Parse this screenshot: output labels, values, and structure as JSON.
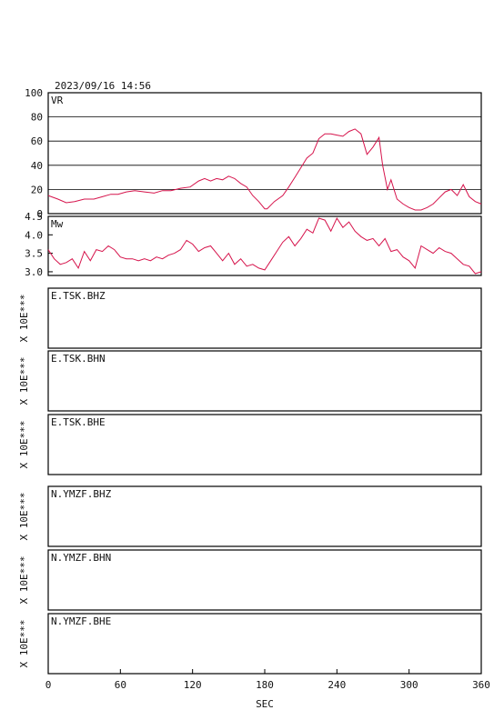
{
  "header": {
    "timestamp": "2023/09/16  14:56"
  },
  "colors": {
    "line": "#d6144c",
    "axis": "#000000",
    "grid": "#000000"
  },
  "chart_data": [
    {
      "type": "line",
      "ylabel": "VR",
      "ylim": [
        0,
        100
      ],
      "yticks": [
        "0",
        "20",
        "40",
        "60",
        "80",
        "100"
      ],
      "grid": true,
      "x": [
        0,
        8,
        15,
        22,
        30,
        38,
        45,
        52,
        58,
        65,
        72,
        80,
        88,
        95,
        102,
        110,
        118,
        125,
        130,
        135,
        140,
        145,
        150,
        155,
        160,
        165,
        170,
        175,
        180,
        182,
        188,
        195,
        200,
        205,
        210,
        215,
        220,
        225,
        230,
        235,
        240,
        245,
        250,
        255,
        260,
        265,
        270,
        275,
        278,
        282,
        285,
        290,
        295,
        300,
        305,
        310,
        315,
        320,
        325,
        330,
        335,
        340,
        345,
        350,
        355,
        360
      ],
      "y": [
        15,
        12,
        9,
        10,
        12,
        12,
        14,
        16,
        16,
        18,
        19,
        18,
        17,
        19,
        19,
        21,
        22,
        27,
        29,
        27,
        29,
        28,
        31,
        29,
        25,
        22,
        15,
        10,
        4,
        4,
        10,
        15,
        22,
        30,
        38,
        46,
        50,
        62,
        66,
        66,
        65,
        64,
        68,
        70,
        66,
        49,
        55,
        63,
        40,
        20,
        28,
        12,
        8,
        5,
        3,
        3,
        5,
        8,
        13,
        18,
        20,
        15,
        24,
        14,
        10,
        8
      ]
    },
    {
      "type": "line",
      "ylabel": "Mw",
      "ylim": [
        2.9,
        4.5
      ],
      "yticks": [
        "3.0",
        "3.5",
        "4.0",
        "4.5"
      ],
      "grid": false,
      "x": [
        0,
        5,
        10,
        15,
        20,
        25,
        30,
        35,
        40,
        45,
        50,
        55,
        60,
        65,
        70,
        75,
        80,
        85,
        90,
        95,
        100,
        105,
        110,
        115,
        120,
        125,
        130,
        135,
        140,
        145,
        150,
        155,
        160,
        165,
        170,
        175,
        180,
        185,
        190,
        195,
        200,
        205,
        210,
        215,
        220,
        225,
        230,
        235,
        240,
        245,
        250,
        255,
        260,
        265,
        270,
        275,
        280,
        285,
        290,
        295,
        300,
        305,
        310,
        315,
        320,
        325,
        330,
        335,
        340,
        345,
        350,
        355,
        360
      ],
      "y": [
        3.6,
        3.35,
        3.2,
        3.25,
        3.35,
        3.1,
        3.55,
        3.3,
        3.6,
        3.55,
        3.7,
        3.6,
        3.4,
        3.35,
        3.35,
        3.3,
        3.35,
        3.3,
        3.4,
        3.35,
        3.45,
        3.5,
        3.6,
        3.85,
        3.75,
        3.55,
        3.65,
        3.7,
        3.5,
        3.3,
        3.5,
        3.2,
        3.35,
        3.15,
        3.2,
        3.1,
        3.05,
        3.3,
        3.55,
        3.8,
        3.95,
        3.7,
        3.9,
        4.15,
        4.05,
        4.45,
        4.4,
        4.1,
        4.45,
        4.2,
        4.35,
        4.1,
        3.95,
        3.85,
        3.9,
        3.7,
        3.9,
        3.55,
        3.6,
        3.4,
        3.3,
        3.1,
        3.7,
        3.6,
        3.5,
        3.65,
        3.55,
        3.5,
        3.35,
        3.2,
        3.15,
        2.95,
        3.0
      ]
    }
  ],
  "traces": [
    {
      "label": "E.TSK.BHZ",
      "scale": "X 10E***"
    },
    {
      "label": "E.TSK.BHN",
      "scale": "X 10E***"
    },
    {
      "label": "E.TSK.BHE",
      "scale": "X 10E***"
    },
    {
      "label": "N.YMZF.BHZ",
      "scale": "X 10E***"
    },
    {
      "label": "N.YMZF.BHN",
      "scale": "X 10E***"
    },
    {
      "label": "N.YMZF.BHE",
      "scale": "X 10E***"
    }
  ],
  "xaxis": {
    "ticks": [
      "0",
      "60",
      "120",
      "180",
      "240",
      "300",
      "360"
    ],
    "xlim": [
      0,
      360
    ],
    "label": "SEC"
  }
}
